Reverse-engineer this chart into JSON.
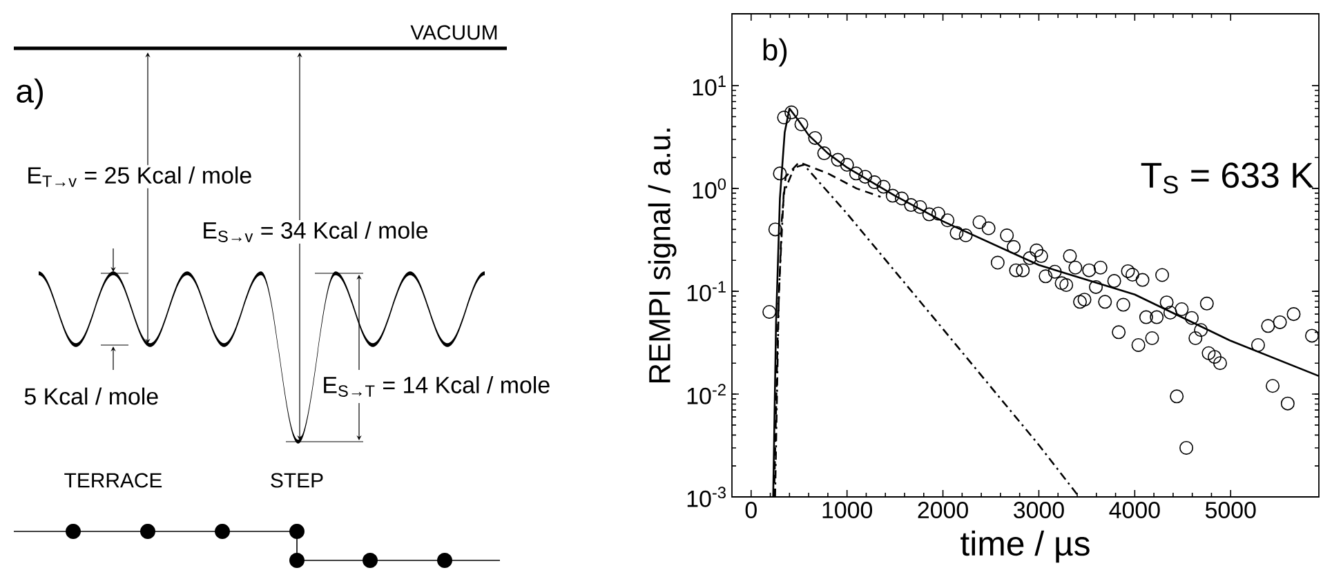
{
  "chart_data": [
    {
      "type": "other",
      "annotations": [
        "VACUUM",
        "a)",
        "E$_{T→v}$ = 25 Kcal / mole",
        "E$_{S→v}$ = 34 Kcal / mole",
        "5 Kcal / mole",
        "E$_{S→T}$ = 14 Kcal / mole",
        "TERRACE",
        "STEP"
      ]
    },
    {
      "type": "scatter",
      "xlabel": "time / µs",
      "ylabel": "REMPI signal / a.u.",
      "annotations": [
        "b)",
        "T$_{S}$ = 633 K"
      ],
      "log": "y",
      "xlim": [
        -200,
        5920
      ],
      "ylim": [
        0.001,
        50
      ],
      "xticks": [
        0,
        1000,
        2000,
        3000,
        4000,
        5000
      ],
      "yticks": [
        {
          "value": 0.001,
          "label": "10$^{-3}$"
        },
        {
          "value": 0.01,
          "label": "10$^{-2}$"
        },
        {
          "value": 0.1,
          "label": "10$^{-1}$"
        },
        {
          "value": 1,
          "label": "10$^{0}$"
        },
        {
          "value": 10,
          "label": "10$^{1}$"
        }
      ],
      "series": [
        {
          "type": "scatter",
          "color": "#000000",
          "marker": "circle",
          "x": [
            190,
            252,
            300,
            343,
            420,
            524,
            667,
            762,
            905,
            1000,
            1095,
            1190,
            1286,
            1381,
            1476,
            1571,
            1667,
            1762,
            1857,
            1952,
            2048,
            2143,
            2238,
            2381,
            2476,
            2571,
            2667,
            2738,
            2762,
            2833,
            2905,
            2976,
            3024,
            3071,
            3167,
            3238,
            3286,
            3324,
            3381,
            3429,
            3476,
            3524,
            3595,
            3643,
            3690,
            3786,
            3833,
            3881,
            3929,
            3976,
            4038,
            4081,
            4119,
            4181,
            4229,
            4286,
            4333,
            4371,
            4438,
            4490,
            4538,
            4595,
            4633,
            4690,
            4752,
            4771,
            4833,
            4890,
            5286,
            5390,
            5438,
            5514,
            5595,
            5657,
            5848
          ],
          "values": [
            0.063,
            0.4,
            1.4,
            4.9,
            5.5,
            4.2,
            3.1,
            2.2,
            1.9,
            1.7,
            1.4,
            1.3,
            1.15,
            1.04,
            0.85,
            0.8,
            0.69,
            0.66,
            0.56,
            0.57,
            0.49,
            0.37,
            0.35,
            0.47,
            0.41,
            0.19,
            0.35,
            0.27,
            0.16,
            0.16,
            0.21,
            0.25,
            0.22,
            0.14,
            0.155,
            0.12,
            0.115,
            0.22,
            0.17,
            0.079,
            0.083,
            0.16,
            0.11,
            0.17,
            0.079,
            0.126,
            0.04,
            0.074,
            0.157,
            0.145,
            0.03,
            0.129,
            0.056,
            0.035,
            0.056,
            0.144,
            0.078,
            0.062,
            0.0095,
            0.067,
            0.003,
            0.055,
            0.035,
            0.042,
            0.076,
            0.025,
            0.023,
            0.02,
            0.03,
            0.046,
            0.012,
            0.05,
            0.0081,
            0.06,
            0.037
          ]
        },
        {
          "type": "line",
          "color": "#000000",
          "marker": "none",
          "line_style": "solid",
          "x": [
            230,
            260,
            300,
            350,
            400,
            500,
            600,
            800,
            1000,
            1500,
            2000,
            3000,
            4000,
            5000,
            5920
          ],
          "values": [
            0.001,
            0.05,
            0.8,
            3.5,
            6.0,
            4.5,
            3.3,
            2.2,
            1.6,
            0.85,
            0.48,
            0.18,
            0.093,
            0.033,
            0.015
          ]
        },
        {
          "type": "line",
          "color": "#000000",
          "marker": "none",
          "line_style": "dashed",
          "x": [
            240,
            280,
            320,
            360,
            500,
            800,
            1100,
            1350
          ],
          "values": [
            0.001,
            0.05,
            0.5,
            1.3,
            1.8,
            1.4,
            1.0,
            0.83
          ]
        },
        {
          "type": "line",
          "color": "#000000",
          "marker": "none",
          "line_style": "dashdot",
          "x": [
            250,
            290,
            340,
            450,
            550,
            1000,
            2000,
            3000,
            3420
          ],
          "values": [
            0.001,
            0.1,
            0.9,
            1.6,
            1.7,
            0.57,
            0.043,
            0.0032,
            0.001
          ]
        }
      ]
    }
  ]
}
